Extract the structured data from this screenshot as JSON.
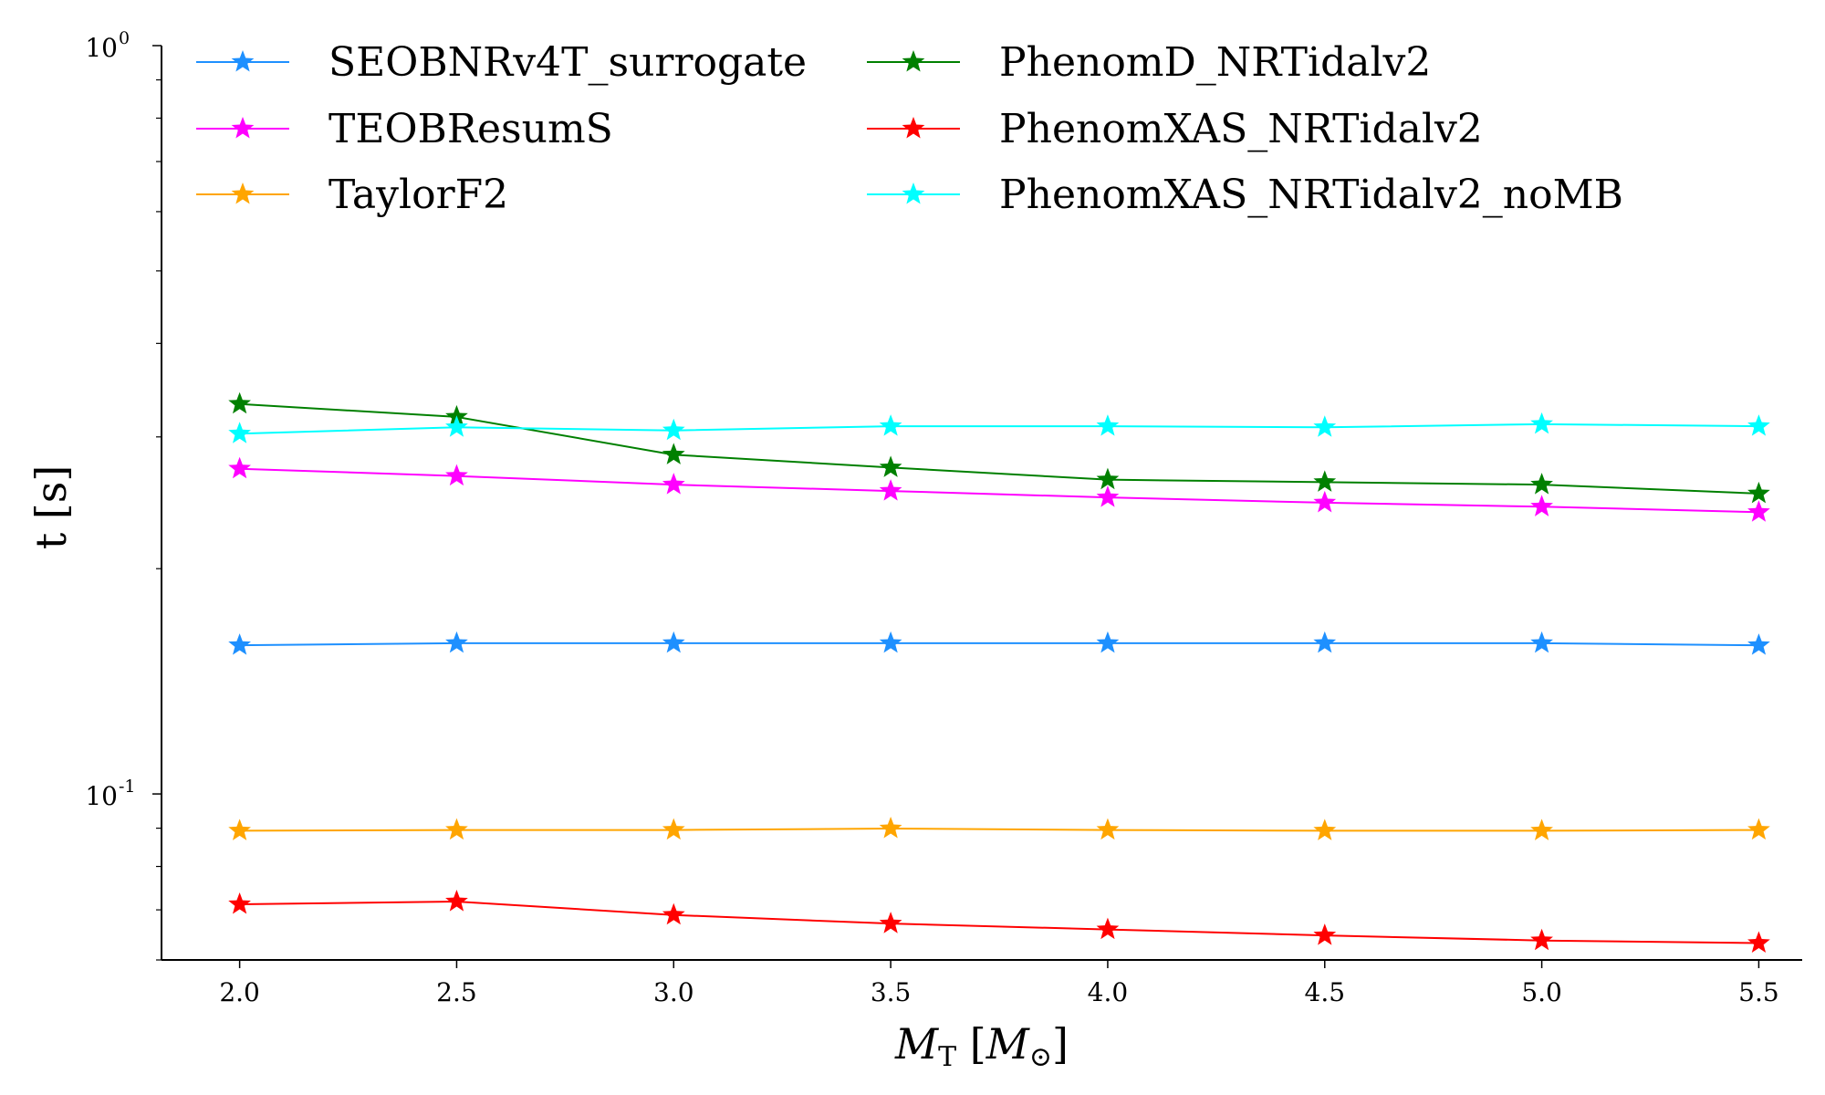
{
  "chart_data": {
    "type": "line",
    "title": "",
    "xlabel": "M_T [M_⊙]",
    "xlabel_parts": {
      "main": "M",
      "sub": "T",
      "bracket_open": "[",
      "inner_main": "M",
      "inner_sub": "⊙",
      "bracket_close": "]"
    },
    "ylabel": "t [s]",
    "yscale": "log",
    "ylim": [
      0.06,
      1.0
    ],
    "xlim": [
      1.82,
      5.6
    ],
    "x": [
      2.0,
      2.5,
      3.0,
      3.5,
      4.0,
      4.5,
      5.0,
      5.5
    ],
    "x_ticks": [
      2.0,
      2.5,
      3.0,
      3.5,
      4.0,
      4.5,
      5.0,
      5.5
    ],
    "x_tick_labels": [
      "2.0",
      "2.5",
      "3.0",
      "3.5",
      "4.0",
      "4.5",
      "5.0",
      "5.5"
    ],
    "y_major_ticks": [
      {
        "value": 1.0,
        "base": "10",
        "exp": "0"
      },
      {
        "value": 0.1,
        "base": "10",
        "exp": "-1"
      }
    ],
    "y_minor_ticks": [
      0.06,
      0.07,
      0.08,
      0.09,
      0.2,
      0.3,
      0.4,
      0.5,
      0.6,
      0.7,
      0.8,
      0.9
    ],
    "legend_position": "top, two columns",
    "series": [
      {
        "name": "SEOBNRv4T_surrogate",
        "color": "#1E90FF",
        "marker": "star",
        "values": [
          0.158,
          0.159,
          0.159,
          0.159,
          0.159,
          0.159,
          0.159,
          0.158
        ]
      },
      {
        "name": "TEOBResumS",
        "color": "#FF00FF",
        "marker": "star",
        "values": [
          0.272,
          0.266,
          0.259,
          0.254,
          0.249,
          0.245,
          0.242,
          0.238
        ]
      },
      {
        "name": "TaylorF2",
        "color": "#FFA500",
        "marker": "star",
        "values": [
          0.0893,
          0.0895,
          0.0895,
          0.0899,
          0.0895,
          0.0893,
          0.0893,
          0.0895
        ]
      },
      {
        "name": "PhenomD_NRTidalv2",
        "color": "#008000",
        "marker": "star",
        "values": [
          0.332,
          0.319,
          0.284,
          0.273,
          0.263,
          0.261,
          0.259,
          0.252
        ]
      },
      {
        "name": "PhenomXAS_NRTidalv2",
        "color": "#FF0000",
        "marker": "star",
        "values": [
          0.0712,
          0.0718,
          0.0689,
          0.0671,
          0.0659,
          0.0647,
          0.0637,
          0.0632
        ]
      },
      {
        "name": "PhenomXAS_NRTidalv2_noMB",
        "color": "#00FFFF",
        "marker": "star",
        "values": [
          0.303,
          0.309,
          0.306,
          0.31,
          0.31,
          0.309,
          0.312,
          0.31
        ]
      }
    ]
  }
}
